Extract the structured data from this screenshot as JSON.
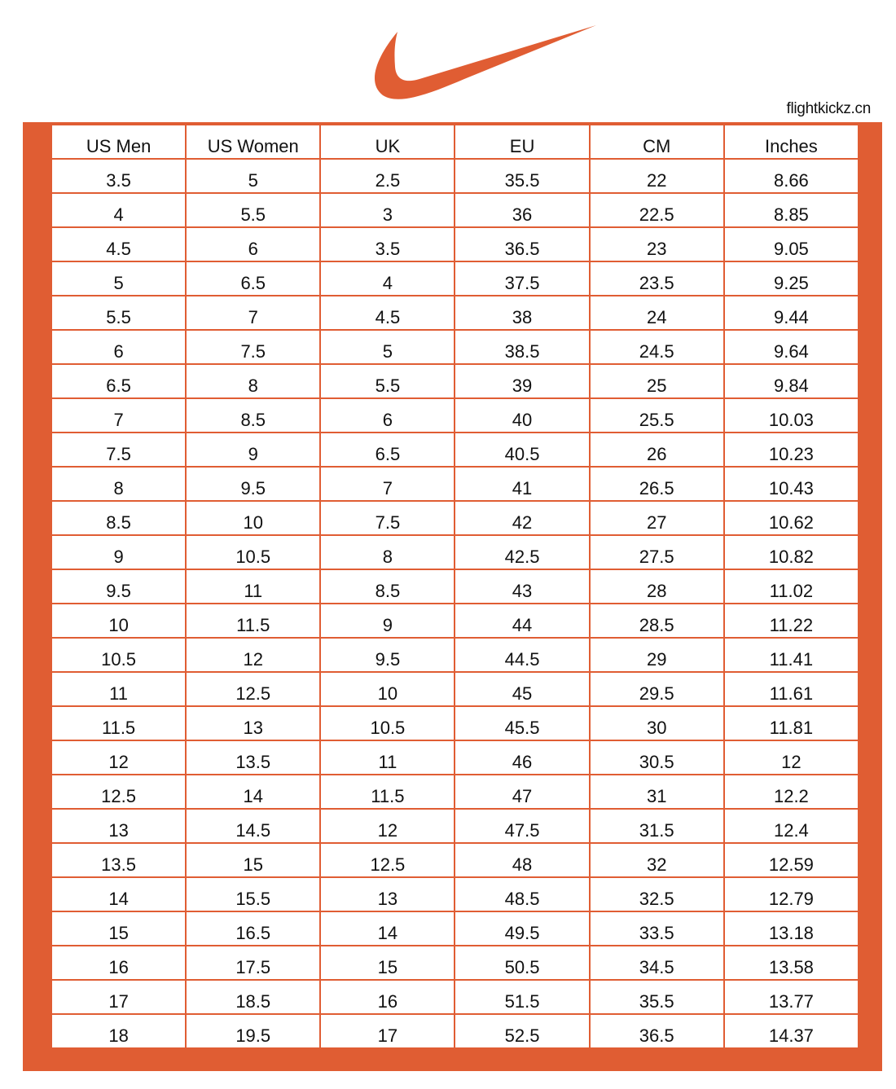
{
  "brand": {
    "logo": "Nike swoosh",
    "color": "#e05d33"
  },
  "site": "flightkickz.cn",
  "table": {
    "headers": [
      "US Men",
      "US Women",
      "UK",
      "EU",
      "CM",
      "Inches"
    ],
    "rows": [
      [
        "3.5",
        "5",
        "2.5",
        "35.5",
        "22",
        "8.66"
      ],
      [
        "4",
        "5.5",
        "3",
        "36",
        "22.5",
        "8.85"
      ],
      [
        "4.5",
        "6",
        "3.5",
        "36.5",
        "23",
        "9.05"
      ],
      [
        "5",
        "6.5",
        "4",
        "37.5",
        "23.5",
        "9.25"
      ],
      [
        "5.5",
        "7",
        "4.5",
        "38",
        "24",
        "9.44"
      ],
      [
        "6",
        "7.5",
        "5",
        "38.5",
        "24.5",
        "9.64"
      ],
      [
        "6.5",
        "8",
        "5.5",
        "39",
        "25",
        "9.84"
      ],
      [
        "7",
        "8.5",
        "6",
        "40",
        "25.5",
        "10.03"
      ],
      [
        "7.5",
        "9",
        "6.5",
        "40.5",
        "26",
        "10.23"
      ],
      [
        "8",
        "9.5",
        "7",
        "41",
        "26.5",
        "10.43"
      ],
      [
        "8.5",
        "10",
        "7.5",
        "42",
        "27",
        "10.62"
      ],
      [
        "9",
        "10.5",
        "8",
        "42.5",
        "27.5",
        "10.82"
      ],
      [
        "9.5",
        "11",
        "8.5",
        "43",
        "28",
        "11.02"
      ],
      [
        "10",
        "11.5",
        "9",
        "44",
        "28.5",
        "11.22"
      ],
      [
        "10.5",
        "12",
        "9.5",
        "44.5",
        "29",
        "11.41"
      ],
      [
        "11",
        "12.5",
        "10",
        "45",
        "29.5",
        "11.61"
      ],
      [
        "11.5",
        "13",
        "10.5",
        "45.5",
        "30",
        "11.81"
      ],
      [
        "12",
        "13.5",
        "11",
        "46",
        "30.5",
        "12"
      ],
      [
        "12.5",
        "14",
        "11.5",
        "47",
        "31",
        "12.2"
      ],
      [
        "13",
        "14.5",
        "12",
        "47.5",
        "31.5",
        "12.4"
      ],
      [
        "13.5",
        "15",
        "12.5",
        "48",
        "32",
        "12.59"
      ],
      [
        "14",
        "15.5",
        "13",
        "48.5",
        "32.5",
        "12.79"
      ],
      [
        "15",
        "16.5",
        "14",
        "49.5",
        "33.5",
        "13.18"
      ],
      [
        "16",
        "17.5",
        "15",
        "50.5",
        "34.5",
        "13.58"
      ],
      [
        "17",
        "18.5",
        "16",
        "51.5",
        "35.5",
        "13.77"
      ],
      [
        "18",
        "19.5",
        "17",
        "52.5",
        "36.5",
        "14.37"
      ]
    ]
  }
}
